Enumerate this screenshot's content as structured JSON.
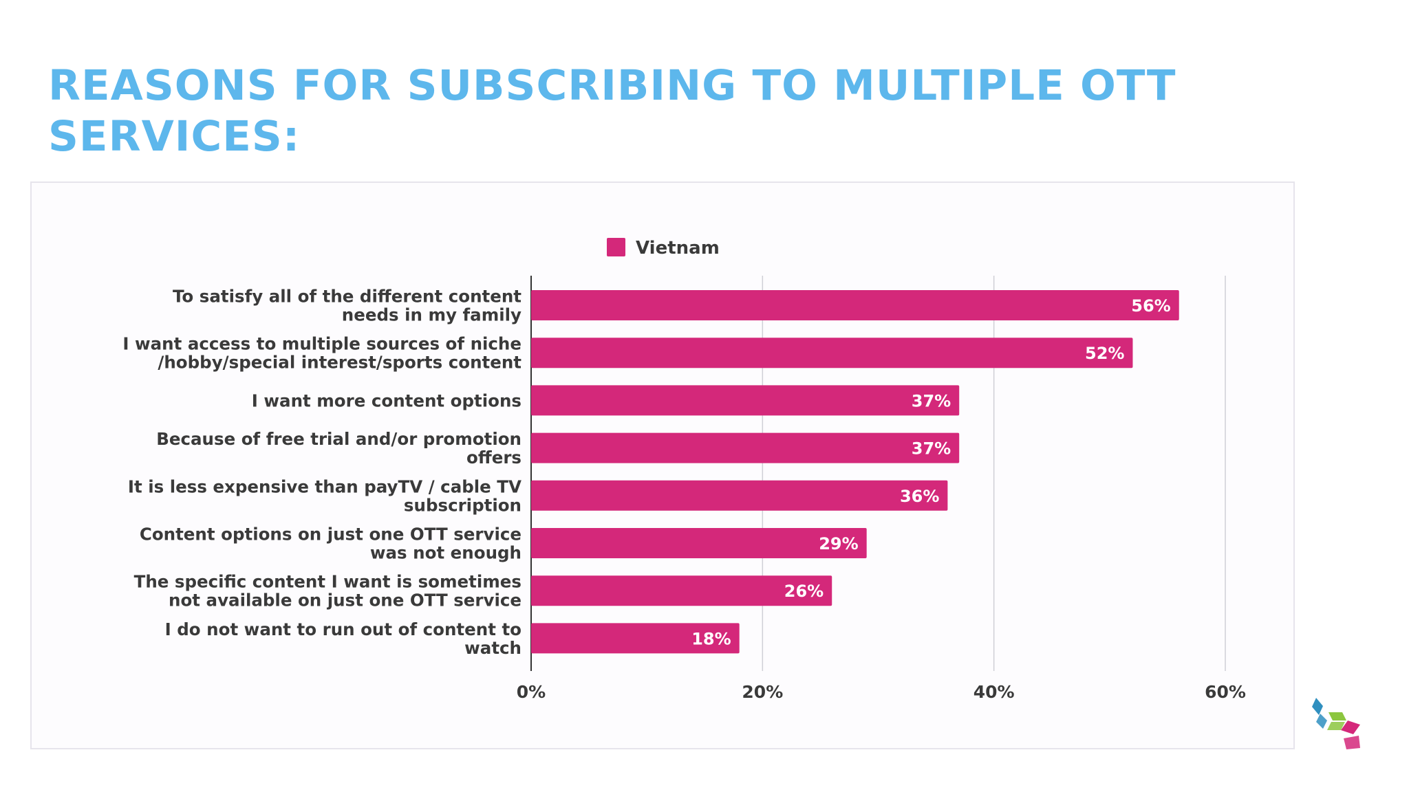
{
  "title": "REASONS FOR SUBSCRIBING TO MULTIPLE OTT SERVICES:",
  "colors": {
    "title": "#5db7ec",
    "bar": "#d4287a",
    "text": "#3a3a3a",
    "grid": "#cfcfd6",
    "bar_label": "#ffffff"
  },
  "logo": {
    "icon": "cube-logo-icon",
    "colors": [
      "#2f8fbf",
      "#8cc63f",
      "#d4287a"
    ]
  },
  "chart_data": {
    "type": "bar",
    "orientation": "horizontal",
    "categories": [
      [
        "To satisfy all of the different content",
        "needs in my family"
      ],
      [
        "I want access to multiple sources of niche",
        "/hobby/special interest/sports content"
      ],
      [
        "I want more content options"
      ],
      [
        "Because of free trial and/or promotion",
        "offers"
      ],
      [
        "It is less expensive than payTV / cable TV",
        "subscription"
      ],
      [
        "Content options on just one OTT service",
        "was not enough"
      ],
      [
        "The specific content I want is sometimes",
        "not available on just one OTT service"
      ],
      [
        "I do not want to run out of content to",
        "watch"
      ]
    ],
    "series": [
      {
        "name": "Vietnam",
        "values": [
          56,
          52,
          37,
          37,
          36,
          29,
          26,
          18
        ],
        "data_labels": [
          "56%",
          "52%",
          "37%",
          "37%",
          "36%",
          "29%",
          "26%",
          "18%"
        ]
      }
    ],
    "xlim": [
      0,
      60
    ],
    "xticks": [
      0,
      20,
      40,
      60
    ],
    "xtick_labels": [
      "0%",
      "20%",
      "40%",
      "60%"
    ],
    "grid": "vertical",
    "legend": "top-center"
  }
}
